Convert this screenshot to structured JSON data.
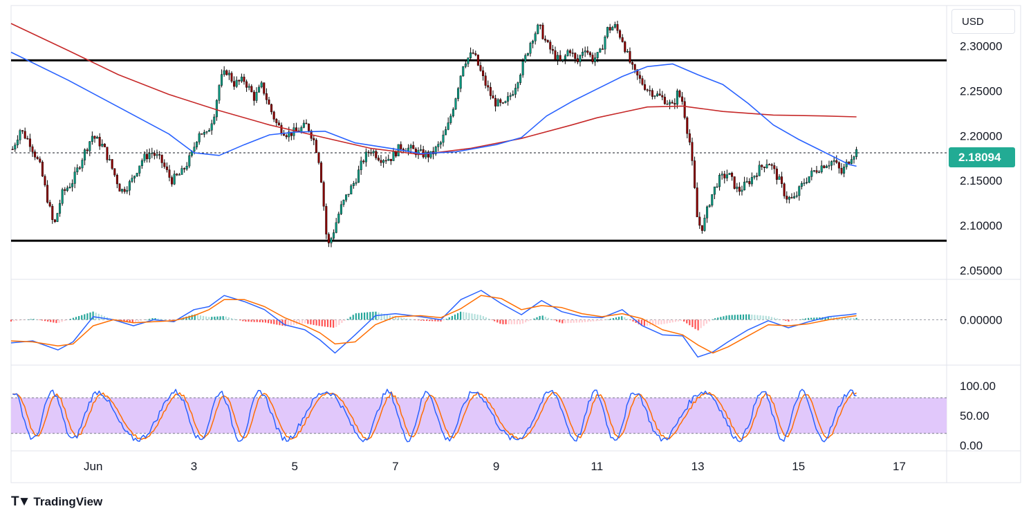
{
  "currency": "USD",
  "last_price": "2.18094",
  "logo_text": "TradingView",
  "colors": {
    "up": "#22ab94",
    "down": "#f23645",
    "candle_body_up": "#089981",
    "candle_body_down": "#8b0000",
    "ma_fast": "#2962ff",
    "ma_slow": "#c62828",
    "macd_line": "#2962ff",
    "signal_line": "#ff6d00",
    "stoch_band": "#e1c8fb",
    "price_tag": "#22ab94"
  },
  "chart_data": {
    "type": "candlestick",
    "price_axis": {
      "ylim": [
        2.04,
        2.345
      ],
      "ticks": [
        "2.30000",
        "2.25000",
        "2.20000",
        "2.15000",
        "2.10000",
        "2.05000"
      ],
      "tick_values": [
        2.3,
        2.25,
        2.2,
        2.15,
        2.1,
        2.05
      ]
    },
    "x_axis": {
      "ticks": [
        "Jun",
        "3",
        "5",
        "7",
        "9",
        "11",
        "13",
        "15",
        "17"
      ],
      "tick_days": [
        1,
        3,
        5,
        7,
        9,
        11,
        13,
        15,
        17
      ],
      "xlim_days": [
        -0.63,
        17.94
      ]
    },
    "horizontal_lines": [
      {
        "role": "resistance",
        "value": 2.284
      },
      {
        "role": "support",
        "value": 2.083
      }
    ],
    "last_price_line": 2.18094,
    "price_path": [
      [
        -0.6,
        2.185
      ],
      [
        -0.45,
        2.207
      ],
      [
        -0.25,
        2.192
      ],
      [
        -0.05,
        2.165
      ],
      [
        0.1,
        2.128
      ],
      [
        0.22,
        2.098
      ],
      [
        0.38,
        2.135
      ],
      [
        0.6,
        2.15
      ],
      [
        0.8,
        2.178
      ],
      [
        0.98,
        2.2
      ],
      [
        1.2,
        2.188
      ],
      [
        1.38,
        2.163
      ],
      [
        1.55,
        2.138
      ],
      [
        1.75,
        2.148
      ],
      [
        1.95,
        2.172
      ],
      [
        2.15,
        2.182
      ],
      [
        2.35,
        2.172
      ],
      [
        2.55,
        2.15
      ],
      [
        2.75,
        2.158
      ],
      [
        2.95,
        2.178
      ],
      [
        3.1,
        2.205
      ],
      [
        3.25,
        2.2
      ],
      [
        3.4,
        2.225
      ],
      [
        3.52,
        2.262
      ],
      [
        3.65,
        2.272
      ],
      [
        3.8,
        2.258
      ],
      [
        4.0,
        2.262
      ],
      [
        4.2,
        2.242
      ],
      [
        4.35,
        2.256
      ],
      [
        4.5,
        2.232
      ],
      [
        4.65,
        2.212
      ],
      [
        4.85,
        2.202
      ],
      [
        5.05,
        2.205
      ],
      [
        5.25,
        2.212
      ],
      [
        5.4,
        2.192
      ],
      [
        5.5,
        2.168
      ],
      [
        5.58,
        2.12
      ],
      [
        5.65,
        2.075
      ],
      [
        5.75,
        2.09
      ],
      [
        5.9,
        2.118
      ],
      [
        6.05,
        2.135
      ],
      [
        6.2,
        2.15
      ],
      [
        6.35,
        2.172
      ],
      [
        6.5,
        2.185
      ],
      [
        6.7,
        2.175
      ],
      [
        6.9,
        2.175
      ],
      [
        7.1,
        2.188
      ],
      [
        7.3,
        2.185
      ],
      [
        7.5,
        2.18
      ],
      [
        7.7,
        2.178
      ],
      [
        7.9,
        2.192
      ],
      [
        8.05,
        2.212
      ],
      [
        8.2,
        2.245
      ],
      [
        8.35,
        2.282
      ],
      [
        8.55,
        2.292
      ],
      [
        8.75,
        2.262
      ],
      [
        8.95,
        2.238
      ],
      [
        9.15,
        2.232
      ],
      [
        9.35,
        2.252
      ],
      [
        9.55,
        2.282
      ],
      [
        9.7,
        2.308
      ],
      [
        9.85,
        2.322
      ],
      [
        10.0,
        2.302
      ],
      [
        10.15,
        2.29
      ],
      [
        10.3,
        2.28
      ],
      [
        10.45,
        2.298
      ],
      [
        10.6,
        2.28
      ],
      [
        10.75,
        2.3
      ],
      [
        10.9,
        2.285
      ],
      [
        11.05,
        2.29
      ],
      [
        11.2,
        2.318
      ],
      [
        11.35,
        2.322
      ],
      [
        11.5,
        2.308
      ],
      [
        11.6,
        2.29
      ],
      [
        11.72,
        2.272
      ],
      [
        11.85,
        2.262
      ],
      [
        12.0,
        2.252
      ],
      [
        12.2,
        2.245
      ],
      [
        12.35,
        2.24
      ],
      [
        12.5,
        2.232
      ],
      [
        12.6,
        2.248
      ],
      [
        12.7,
        2.238
      ],
      [
        12.78,
        2.21
      ],
      [
        12.85,
        2.19
      ],
      [
        12.92,
        2.15
      ],
      [
        13.0,
        2.102
      ],
      [
        13.1,
        2.098
      ],
      [
        13.25,
        2.13
      ],
      [
        13.4,
        2.15
      ],
      [
        13.6,
        2.158
      ],
      [
        13.8,
        2.138
      ],
      [
        14.0,
        2.148
      ],
      [
        14.2,
        2.162
      ],
      [
        14.4,
        2.172
      ],
      [
        14.6,
        2.152
      ],
      [
        14.75,
        2.132
      ],
      [
        14.9,
        2.128
      ],
      [
        15.1,
        2.148
      ],
      [
        15.3,
        2.16
      ],
      [
        15.5,
        2.168
      ],
      [
        15.7,
        2.172
      ],
      [
        15.85,
        2.158
      ],
      [
        15.95,
        2.168
      ],
      [
        16.05,
        2.178
      ],
      [
        16.15,
        2.183
      ]
    ],
    "ma_fast_path": [
      [
        -0.63,
        2.293
      ],
      [
        0.5,
        2.262
      ],
      [
        1.5,
        2.232
      ],
      [
        2.5,
        2.202
      ],
      [
        3.0,
        2.181
      ],
      [
        3.5,
        2.178
      ],
      [
        4.0,
        2.19
      ],
      [
        4.5,
        2.201
      ],
      [
        5.0,
        2.204
      ],
      [
        5.6,
        2.205
      ],
      [
        6.2,
        2.192
      ],
      [
        7.0,
        2.185
      ],
      [
        7.5,
        2.18
      ],
      [
        8.2,
        2.182
      ],
      [
        9.0,
        2.19
      ],
      [
        9.5,
        2.198
      ],
      [
        10.0,
        2.222
      ],
      [
        10.5,
        2.238
      ],
      [
        11.0,
        2.252
      ],
      [
        11.5,
        2.266
      ],
      [
        12.0,
        2.277
      ],
      [
        12.5,
        2.28
      ],
      [
        13.0,
        2.268
      ],
      [
        13.5,
        2.257
      ],
      [
        14.0,
        2.236
      ],
      [
        14.5,
        2.212
      ],
      [
        15.0,
        2.196
      ],
      [
        15.5,
        2.182
      ],
      [
        16.0,
        2.168
      ],
      [
        16.15,
        2.166
      ]
    ],
    "ma_slow_path": [
      [
        -0.63,
        2.325
      ],
      [
        0.5,
        2.295
      ],
      [
        1.5,
        2.268
      ],
      [
        2.5,
        2.246
      ],
      [
        3.5,
        2.228
      ],
      [
        4.5,
        2.212
      ],
      [
        5.5,
        2.199
      ],
      [
        6.5,
        2.186
      ],
      [
        7.5,
        2.179
      ],
      [
        8.5,
        2.186
      ],
      [
        9.5,
        2.197
      ],
      [
        10.5,
        2.212
      ],
      [
        11.0,
        2.22
      ],
      [
        11.5,
        2.226
      ],
      [
        12.0,
        2.232
      ],
      [
        12.7,
        2.233
      ],
      [
        13.5,
        2.227
      ],
      [
        14.5,
        2.223
      ],
      [
        15.5,
        2.222
      ],
      [
        16.15,
        2.221
      ]
    ],
    "macd": {
      "ylim": [
        -0.045,
        0.04
      ],
      "tick": "0.00000",
      "tick_value": 0,
      "macd_path": [
        [
          -0.63,
          -0.023
        ],
        [
          -0.2,
          -0.021
        ],
        [
          0.3,
          -0.03
        ],
        [
          0.6,
          -0.022
        ],
        [
          1.0,
          0.003
        ],
        [
          1.4,
          0.0
        ],
        [
          1.8,
          -0.006
        ],
        [
          2.2,
          0.0
        ],
        [
          2.6,
          -0.002
        ],
        [
          3.0,
          0.01
        ],
        [
          3.3,
          0.013
        ],
        [
          3.6,
          0.024
        ],
        [
          4.0,
          0.018
        ],
        [
          4.4,
          0.01
        ],
        [
          4.8,
          -0.005
        ],
        [
          5.2,
          -0.01
        ],
        [
          5.5,
          -0.02
        ],
        [
          5.8,
          -0.033
        ],
        [
          6.2,
          -0.015
        ],
        [
          6.6,
          0.004
        ],
        [
          7.0,
          0.006
        ],
        [
          7.5,
          0.003
        ],
        [
          7.9,
          0.0
        ],
        [
          8.3,
          0.02
        ],
        [
          8.7,
          0.029
        ],
        [
          9.1,
          0.016
        ],
        [
          9.5,
          0.005
        ],
        [
          9.9,
          0.019
        ],
        [
          10.3,
          0.008
        ],
        [
          10.7,
          0.003
        ],
        [
          11.1,
          0.002
        ],
        [
          11.5,
          0.01
        ],
        [
          11.9,
          -0.006
        ],
        [
          12.3,
          -0.015
        ],
        [
          12.7,
          -0.016
        ],
        [
          13.0,
          -0.037
        ],
        [
          13.3,
          -0.032
        ],
        [
          13.6,
          -0.022
        ],
        [
          14.0,
          -0.01
        ],
        [
          14.4,
          -0.001
        ],
        [
          14.8,
          -0.008
        ],
        [
          15.2,
          -0.002
        ],
        [
          15.6,
          0.003
        ],
        [
          16.0,
          0.005
        ],
        [
          16.15,
          0.006
        ]
      ],
      "signal_path": [
        [
          -0.63,
          -0.021
        ],
        [
          -0.2,
          -0.022
        ],
        [
          0.3,
          -0.026
        ],
        [
          0.6,
          -0.024
        ],
        [
          1.0,
          -0.006
        ],
        [
          1.4,
          0.0
        ],
        [
          1.8,
          -0.003
        ],
        [
          2.2,
          -0.002
        ],
        [
          2.6,
          -0.001
        ],
        [
          3.0,
          0.004
        ],
        [
          3.3,
          0.01
        ],
        [
          3.6,
          0.02
        ],
        [
          4.0,
          0.02
        ],
        [
          4.4,
          0.013
        ],
        [
          4.8,
          0.002
        ],
        [
          5.2,
          -0.006
        ],
        [
          5.5,
          -0.013
        ],
        [
          5.8,
          -0.024
        ],
        [
          6.2,
          -0.022
        ],
        [
          6.6,
          -0.005
        ],
        [
          7.0,
          0.003
        ],
        [
          7.5,
          0.004
        ],
        [
          7.9,
          0.002
        ],
        [
          8.3,
          0.011
        ],
        [
          8.7,
          0.024
        ],
        [
          9.1,
          0.021
        ],
        [
          9.5,
          0.01
        ],
        [
          9.9,
          0.014
        ],
        [
          10.3,
          0.012
        ],
        [
          10.7,
          0.006
        ],
        [
          11.1,
          0.003
        ],
        [
          11.5,
          0.006
        ],
        [
          11.9,
          0.001
        ],
        [
          12.3,
          -0.01
        ],
        [
          12.7,
          -0.015
        ],
        [
          13.0,
          -0.025
        ],
        [
          13.3,
          -0.033
        ],
        [
          13.6,
          -0.027
        ],
        [
          14.0,
          -0.016
        ],
        [
          14.4,
          -0.005
        ],
        [
          14.8,
          -0.006
        ],
        [
          15.2,
          -0.004
        ],
        [
          15.6,
          0.0
        ],
        [
          16.0,
          0.003
        ],
        [
          16.15,
          0.004
        ]
      ]
    },
    "stochastic": {
      "ylim": [
        0,
        100
      ],
      "ticks": [
        "100.00",
        "50.00",
        "0.00"
      ],
      "tick_values": [
        100,
        50,
        0
      ],
      "band": [
        20,
        80
      ]
    }
  }
}
